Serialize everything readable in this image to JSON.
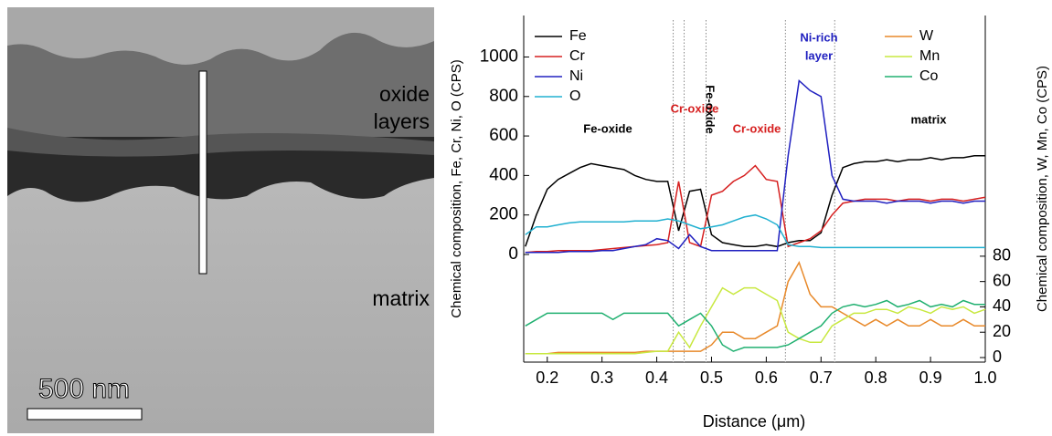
{
  "image": {
    "labels": [
      "oxide layers",
      "matrix"
    ],
    "scale_bar": "500 nm"
  },
  "chart_data": {
    "type": "line",
    "xlabel": "Distance (μm)",
    "ylabel": "Chemical composition, Fe, Cr, Ni, O (CPS)",
    "y2label": "Chemical composition, W, Mn, Co (CPS)",
    "xlim": [
      0.157,
      1.0
    ],
    "xticks": [
      0.2,
      0.3,
      0.4,
      0.5,
      0.6,
      0.7,
      0.8,
      0.9,
      {
        "value": 1,
        "label": "1.0"
      }
    ],
    "ylim": [
      -545,
      1210
    ],
    "yticks": [
      0,
      200,
      400,
      600,
      800,
      1000
    ],
    "y2lim": [
      -3.6,
      270
    ],
    "y2ticks": [
      0,
      20,
      40,
      60,
      80
    ],
    "boundaries": [
      0.43,
      0.45,
      0.49,
      0.635,
      0.725
    ],
    "annotations": [
      {
        "text": "Fe-oxide",
        "color": "#000000"
      },
      {
        "text": "Cr-oxide",
        "color": "#d62020"
      },
      {
        "text": "Fe-oxide",
        "color": "#000000"
      },
      {
        "text": "Cr-oxide",
        "color": "#d62020"
      },
      {
        "text": "Ni-rich",
        "color": "#2020c0"
      },
      {
        "text": "layer",
        "color": "#2020c0"
      },
      {
        "text": "matrix",
        "color": "#000000"
      }
    ],
    "x": [
      0.16,
      0.18,
      0.2,
      0.22,
      0.24,
      0.26,
      0.28,
      0.3,
      0.32,
      0.34,
      0.36,
      0.38,
      0.4,
      0.42,
      0.44,
      0.46,
      0.48,
      0.5,
      0.52,
      0.54,
      0.56,
      0.58,
      0.6,
      0.62,
      0.64,
      0.66,
      0.68,
      0.7,
      0.72,
      0.74,
      0.76,
      0.78,
      0.8,
      0.82,
      0.84,
      0.86,
      0.88,
      0.9,
      0.92,
      0.94,
      0.96,
      0.98,
      1.0
    ],
    "series": [
      {
        "name": "Fe",
        "color": "#000000",
        "values": [
          40,
          200,
          330,
          380,
          410,
          440,
          460,
          450,
          440,
          430,
          400,
          380,
          370,
          370,
          120,
          320,
          330,
          100,
          60,
          50,
          40,
          40,
          50,
          40,
          60,
          70,
          70,
          110,
          300,
          440,
          460,
          470,
          470,
          480,
          470,
          480,
          480,
          490,
          480,
          490,
          490,
          500,
          500
        ]
      },
      {
        "name": "Cr",
        "color": "#d62020",
        "values": [
          10,
          15,
          15,
          20,
          20,
          20,
          20,
          25,
          30,
          35,
          40,
          45,
          50,
          60,
          370,
          60,
          40,
          300,
          320,
          370,
          400,
          450,
          380,
          370,
          40,
          60,
          80,
          120,
          200,
          260,
          270,
          280,
          280,
          280,
          270,
          280,
          280,
          270,
          280,
          280,
          270,
          280,
          290
        ]
      },
      {
        "name": "Ni",
        "color": "#2020c0",
        "values": [
          10,
          10,
          10,
          10,
          15,
          15,
          15,
          20,
          20,
          30,
          40,
          50,
          80,
          70,
          30,
          100,
          40,
          20,
          20,
          20,
          20,
          20,
          20,
          20,
          500,
          880,
          830,
          800,
          400,
          280,
          270,
          270,
          270,
          260,
          270,
          270,
          270,
          260,
          270,
          270,
          260,
          270,
          270
        ]
      },
      {
        "name": "O",
        "color": "#20b0d0",
        "values": [
          100,
          140,
          140,
          150,
          160,
          165,
          165,
          165,
          165,
          165,
          170,
          170,
          170,
          180,
          170,
          150,
          130,
          140,
          150,
          170,
          190,
          200,
          180,
          150,
          50,
          40,
          40,
          35,
          35,
          35,
          35,
          35,
          35,
          35,
          35,
          35,
          35,
          35,
          35,
          35,
          35,
          35,
          35
        ]
      },
      {
        "name": "W",
        "color": "#e8892a",
        "axis": "y2",
        "values": [
          3,
          3,
          3,
          4,
          4,
          4,
          4,
          4,
          4,
          4,
          4,
          5,
          5,
          5,
          5,
          5,
          5,
          10,
          20,
          20,
          15,
          15,
          20,
          25,
          60,
          75,
          50,
          40,
          40,
          35,
          30,
          25,
          30,
          25,
          30,
          25,
          25,
          30,
          25,
          25,
          30,
          25,
          25
        ]
      },
      {
        "name": "Mn",
        "color": "#c8e840",
        "axis": "y2",
        "values": [
          3,
          3,
          3,
          3,
          3,
          3,
          3,
          3,
          3,
          3,
          3,
          4,
          5,
          5,
          20,
          8,
          25,
          40,
          55,
          50,
          55,
          55,
          50,
          45,
          20,
          15,
          12,
          12,
          25,
          30,
          35,
          35,
          38,
          38,
          35,
          40,
          38,
          35,
          40,
          38,
          40,
          35,
          38
        ]
      },
      {
        "name": "Co",
        "color": "#20b070",
        "axis": "y2",
        "values": [
          25,
          30,
          35,
          35,
          35,
          35,
          35,
          35,
          30,
          35,
          35,
          35,
          35,
          35,
          25,
          30,
          35,
          25,
          10,
          5,
          8,
          8,
          8,
          8,
          10,
          15,
          20,
          25,
          35,
          40,
          42,
          40,
          42,
          45,
          40,
          42,
          45,
          40,
          42,
          40,
          45,
          42,
          42
        ]
      }
    ]
  }
}
